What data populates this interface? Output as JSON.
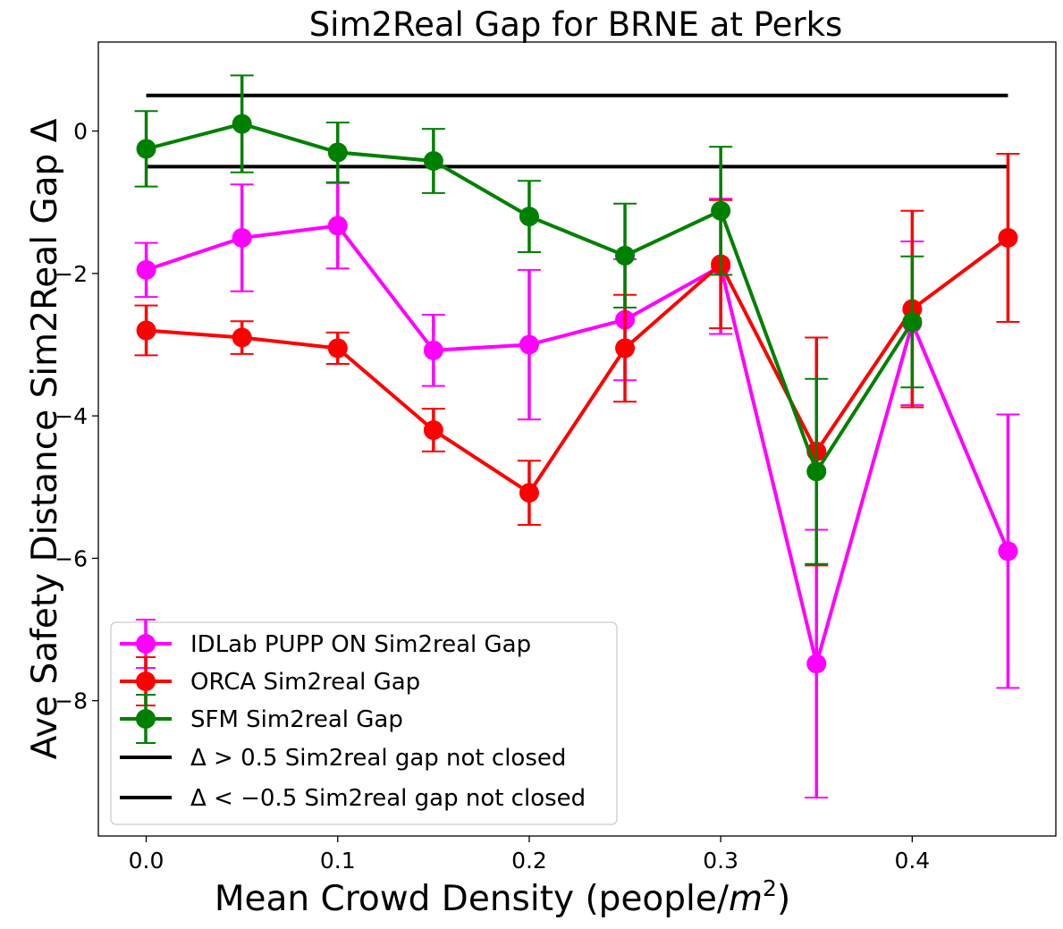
{
  "chart_data": {
    "type": "line",
    "title": "Sim2Real Gap for BRNE at Perks",
    "xlabel": "Mean Crowd Density (people/",
    "xlabel_sup": "2",
    "xlabel_var": "m",
    "xlabel_close": ")",
    "ylabel": "Ave Safety Distance Sim2Real Gap Δ",
    "xlim": [
      -0.025,
      0.475
    ],
    "ylim": [
      -9.9,
      1.25
    ],
    "xticks": [
      0.0,
      0.1,
      0.2,
      0.3,
      0.4
    ],
    "xtick_labels": [
      "0.0",
      "0.1",
      "0.2",
      "0.3",
      "0.4"
    ],
    "yticks": [
      0,
      -2,
      -4,
      -6,
      -8
    ],
    "ytick_labels": [
      "0",
      "−2",
      "−4",
      "−6",
      "−8"
    ],
    "x": [
      0.0,
      0.05,
      0.1,
      0.15,
      0.2,
      0.25,
      0.3,
      0.35,
      0.4,
      0.45
    ],
    "series": [
      {
        "name": "IDLab PUPP ON Sim2real Gap",
        "color": "#ff00ff",
        "values": [
          -1.95,
          -1.5,
          -1.33,
          -3.08,
          -3.0,
          -2.65,
          -1.9,
          -7.48,
          -2.7,
          -5.9
        ],
        "errors": [
          0.38,
          0.75,
          0.6,
          0.5,
          1.05,
          0.85,
          0.95,
          1.88,
          1.15,
          1.92
        ]
      },
      {
        "name": "ORCA Sim2real Gap",
        "color": "#ff0000",
        "values": [
          -2.8,
          -2.9,
          -3.05,
          -4.2,
          -5.08,
          -3.05,
          -1.87,
          -4.5,
          -2.5,
          -1.5
        ],
        "errors": [
          0.35,
          0.23,
          0.22,
          0.3,
          0.45,
          0.75,
          0.9,
          1.6,
          1.38,
          1.18
        ]
      },
      {
        "name": "SFM Sim2real Gap",
        "color": "#008000",
        "values": [
          -0.25,
          0.1,
          -0.3,
          -0.42,
          -1.2,
          -1.75,
          -1.12,
          -4.78,
          -2.68,
          null
        ],
        "errors": [
          0.53,
          0.68,
          0.42,
          0.45,
          0.5,
          0.73,
          0.9,
          1.3,
          0.92,
          null
        ]
      }
    ],
    "reference_lines": [
      {
        "y": 0.5,
        "x_range": [
          0.0,
          0.45
        ],
        "color": "#000000",
        "label": "Δ > 0.5 Sim2real gap not closed"
      },
      {
        "y": -0.5,
        "x_range": [
          0.0,
          0.45
        ],
        "color": "#000000",
        "label": "Δ < −0.5 Sim2real gap not closed"
      }
    ],
    "legend": {
      "placement": "lower-left",
      "entries": [
        "IDLab PUPP ON Sim2real Gap",
        "ORCA Sim2real Gap",
        "SFM Sim2real Gap",
        "Δ > 0.5 Sim2real gap not closed",
        "Δ < −0.5 Sim2real gap not closed"
      ]
    },
    "grid": false
  }
}
